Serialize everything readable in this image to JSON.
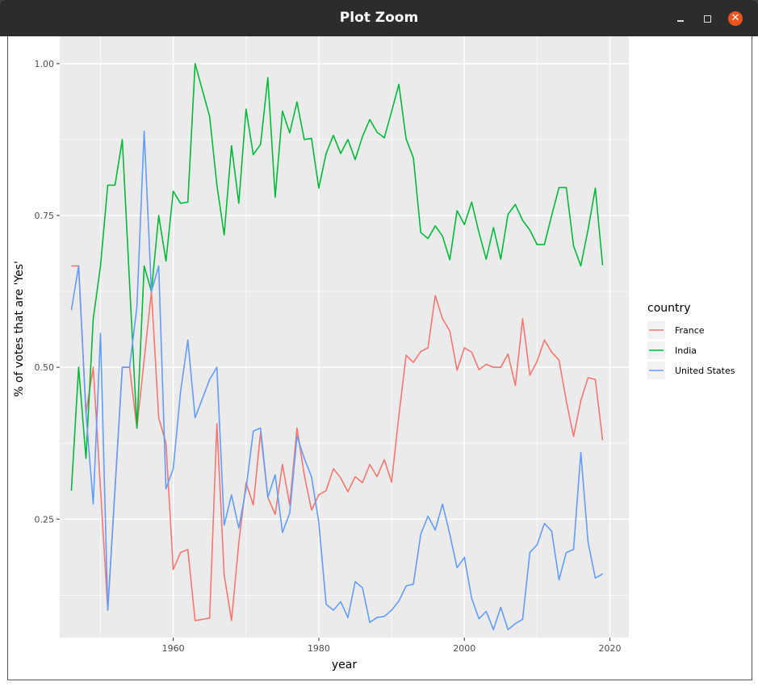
{
  "window": {
    "title": "Plot Zoom",
    "minimize_icon": "minimize-icon",
    "maximize_icon": "maximize-icon",
    "close_icon": "close-icon",
    "close_color": "#e95420"
  },
  "chart_data": {
    "type": "line",
    "xlabel": "year",
    "ylabel": "% of votes that are 'Yes'",
    "xlim": [
      1944.4,
      2022.6
    ],
    "ylim": [
      0.055,
      1.045
    ],
    "x_ticks": [
      1960,
      1980,
      2000,
      2020
    ],
    "y_ticks": [
      0.25,
      0.5,
      0.75,
      1.0
    ],
    "y_tick_labels": [
      "0.25",
      "0.50",
      "0.75",
      "1.00"
    ],
    "grid": true,
    "legend": {
      "title": "country",
      "placement": "right"
    },
    "panel_background": "#ebebeb",
    "series": [
      {
        "name": "France",
        "color": "#f8766d",
        "x": [
          1946,
          1947,
          1948,
          1949,
          1951,
          1953,
          1954,
          1955,
          1957,
          1958,
          1959,
          1960,
          1961,
          1962,
          1963,
          1965,
          1966,
          1967,
          1968,
          1969,
          1970,
          1971,
          1972,
          1973,
          1974,
          1975,
          1976,
          1977,
          1978,
          1979,
          1980,
          1981,
          1982,
          1983,
          1984,
          1985,
          1986,
          1987,
          1988,
          1989,
          1990,
          1991,
          1992,
          1993,
          1994,
          1995,
          1996,
          1997,
          1998,
          1999,
          2000,
          2001,
          2002,
          2003,
          2004,
          2005,
          2006,
          2007,
          2008,
          2009,
          2010,
          2011,
          2012,
          2013,
          2014,
          2015,
          2016,
          2017,
          2018,
          2019
        ],
        "values": [
          0.667,
          0.667,
          0.425,
          0.5,
          0.1,
          0.5,
          0.5,
          0.4,
          0.625,
          0.417,
          0.375,
          0.167,
          0.195,
          0.2,
          0.083,
          0.087,
          0.407,
          0.158,
          0.083,
          0.211,
          0.31,
          0.273,
          0.393,
          0.286,
          0.258,
          0.34,
          0.273,
          0.4,
          0.323,
          0.265,
          0.29,
          0.297,
          0.333,
          0.318,
          0.295,
          0.32,
          0.31,
          0.34,
          0.32,
          0.348,
          0.311,
          0.42,
          0.52,
          0.508,
          0.526,
          0.532,
          0.618,
          0.58,
          0.56,
          0.495,
          0.532,
          0.525,
          0.496,
          0.505,
          0.5,
          0.5,
          0.522,
          0.47,
          0.58,
          0.487,
          0.51,
          0.545,
          0.525,
          0.512,
          0.445,
          0.386,
          0.445,
          0.483,
          0.48,
          0.38
        ]
      },
      {
        "name": "India",
        "color": "#00ba38",
        "x": [
          1946,
          1947,
          1948,
          1949,
          1950,
          1951,
          1952,
          1953,
          1955,
          1956,
          1957,
          1958,
          1959,
          1960,
          1961,
          1962,
          1963,
          1965,
          1966,
          1967,
          1968,
          1969,
          1970,
          1971,
          1972,
          1973,
          1974,
          1975,
          1976,
          1977,
          1978,
          1979,
          1980,
          1981,
          1982,
          1983,
          1984,
          1985,
          1986,
          1987,
          1988,
          1989,
          1990,
          1991,
          1992,
          1993,
          1994,
          1995,
          1996,
          1997,
          1998,
          1999,
          2000,
          2001,
          2002,
          2003,
          2004,
          2005,
          2006,
          2007,
          2008,
          2009,
          2010,
          2011,
          2012,
          2013,
          2014,
          2015,
          2016,
          2017,
          2018,
          2019
        ],
        "values": [
          0.297,
          0.5,
          0.35,
          0.58,
          0.667,
          0.8,
          0.8,
          0.875,
          0.4,
          0.667,
          0.625,
          0.75,
          0.675,
          0.79,
          0.77,
          0.772,
          1.0,
          0.913,
          0.8,
          0.718,
          0.865,
          0.77,
          0.925,
          0.85,
          0.867,
          0.977,
          0.78,
          0.922,
          0.886,
          0.937,
          0.875,
          0.877,
          0.795,
          0.852,
          0.882,
          0.852,
          0.875,
          0.842,
          0.88,
          0.908,
          0.887,
          0.878,
          0.921,
          0.966,
          0.876,
          0.845,
          0.722,
          0.712,
          0.733,
          0.716,
          0.677,
          0.758,
          0.735,
          0.772,
          0.722,
          0.678,
          0.73,
          0.678,
          0.752,
          0.768,
          0.742,
          0.726,
          0.702,
          0.702,
          0.75,
          0.796,
          0.796,
          0.7,
          0.667,
          0.727,
          0.795,
          0.668
        ]
      },
      {
        "name": "United States",
        "color": "#619cff",
        "x": [
          1946,
          1947,
          1948,
          1949,
          1950,
          1951,
          1953,
          1954,
          1955,
          1956,
          1957,
          1958,
          1959,
          1960,
          1961,
          1962,
          1963,
          1965,
          1966,
          1967,
          1968,
          1969,
          1970,
          1971,
          1972,
          1973,
          1974,
          1975,
          1976,
          1977,
          1978,
          1979,
          1980,
          1981,
          1982,
          1983,
          1984,
          1985,
          1986,
          1987,
          1988,
          1989,
          1990,
          1991,
          1992,
          1993,
          1994,
          1995,
          1996,
          1997,
          1998,
          1999,
          2000,
          2001,
          2002,
          2003,
          2004,
          2005,
          2006,
          2007,
          2008,
          2009,
          2010,
          2011,
          2012,
          2013,
          2014,
          2015,
          2016,
          2017,
          2018,
          2019
        ],
        "values": [
          0.594,
          0.667,
          0.425,
          0.275,
          0.556,
          0.1,
          0.5,
          0.5,
          0.6,
          0.889,
          0.625,
          0.667,
          0.3,
          0.333,
          0.46,
          0.545,
          0.417,
          0.48,
          0.5,
          0.24,
          0.29,
          0.235,
          0.3,
          0.395,
          0.4,
          0.286,
          0.323,
          0.228,
          0.26,
          0.387,
          0.35,
          0.32,
          0.245,
          0.11,
          0.1,
          0.114,
          0.088,
          0.147,
          0.137,
          0.08,
          0.088,
          0.09,
          0.1,
          0.115,
          0.14,
          0.143,
          0.225,
          0.255,
          0.232,
          0.275,
          0.225,
          0.17,
          0.187,
          0.12,
          0.086,
          0.098,
          0.068,
          0.105,
          0.068,
          0.078,
          0.085,
          0.195,
          0.208,
          0.243,
          0.23,
          0.15,
          0.195,
          0.2,
          0.36,
          0.212,
          0.153,
          0.16
        ]
      }
    ]
  }
}
